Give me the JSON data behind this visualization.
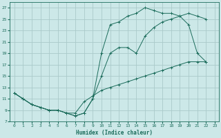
{
  "bg_color": "#cce8e8",
  "grid_color": "#b8d8d8",
  "line_color": "#1a6b5a",
  "marker": "+",
  "xlabel": "Humidex (Indice chaleur)",
  "xlim": [
    -0.5,
    23.5
  ],
  "ylim": [
    7,
    28
  ],
  "yticks": [
    7,
    9,
    11,
    13,
    15,
    17,
    19,
    21,
    23,
    25,
    27
  ],
  "xticks": [
    0,
    1,
    2,
    3,
    4,
    5,
    6,
    7,
    8,
    9,
    10,
    11,
    12,
    13,
    14,
    15,
    16,
    17,
    18,
    19,
    20,
    21,
    22,
    23
  ],
  "curve1_x": [
    0,
    1,
    2,
    3,
    4,
    5,
    6,
    7,
    8,
    9,
    10,
    11,
    12,
    13,
    14,
    15,
    16,
    17,
    18,
    19,
    20,
    21,
    22
  ],
  "curve1_y": [
    12,
    11,
    10,
    9.5,
    9,
    9,
    8.5,
    8,
    8.5,
    11,
    15,
    19,
    20,
    20,
    19,
    22,
    23.5,
    24.5,
    25,
    25.5,
    26,
    25.5,
    25
  ],
  "curve2_x": [
    0,
    1,
    2,
    3,
    4,
    5,
    6,
    7,
    8,
    9,
    10,
    11,
    12,
    13,
    14,
    15,
    16,
    17,
    18,
    19,
    20,
    21,
    22
  ],
  "curve2_y": [
    12,
    11,
    10,
    9.5,
    9,
    9,
    8.5,
    8,
    8.5,
    11,
    19,
    24,
    24.5,
    25.5,
    26,
    27,
    26.5,
    26,
    26,
    25.5,
    24,
    19,
    17.5
  ],
  "curve3_x": [
    0,
    1,
    2,
    3,
    4,
    5,
    6,
    7,
    8,
    9,
    10,
    11,
    12,
    13,
    14,
    15,
    16,
    17,
    18,
    19,
    20,
    21,
    22
  ],
  "curve3_y": [
    12,
    11,
    10,
    9.5,
    9,
    9,
    8.5,
    8.5,
    10.5,
    11.5,
    12.5,
    13,
    13.5,
    14,
    14.5,
    15,
    15.5,
    16,
    16.5,
    17,
    17.5,
    17.5,
    17.5
  ]
}
